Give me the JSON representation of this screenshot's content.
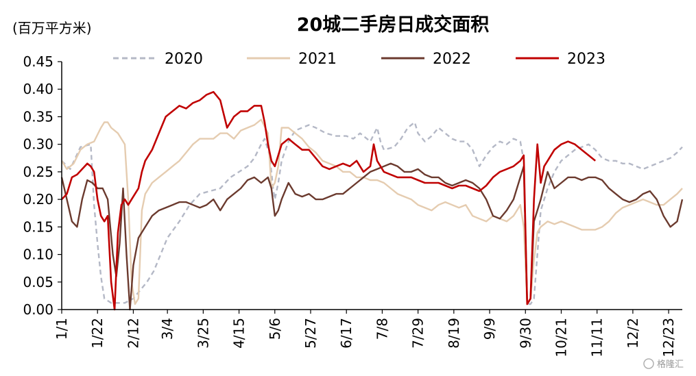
{
  "chart_data": {
    "type": "line",
    "title": "20城二手房日成交面积",
    "unit_label": "(百万平方米)",
    "xlabel": "",
    "ylabel": "",
    "ylim": [
      0,
      0.45
    ],
    "y_ticks": [
      "0.00",
      "0.05",
      "0.10",
      "0.15",
      "0.20",
      "0.25",
      "0.30",
      "0.35",
      "0.40",
      "0.45"
    ],
    "x_domain": [
      1,
      365
    ],
    "x_ticks": [
      {
        "day": 1,
        "label": "1/1"
      },
      {
        "day": 22,
        "label": "1/22"
      },
      {
        "day": 43,
        "label": "2/12"
      },
      {
        "day": 63,
        "label": "3/4"
      },
      {
        "day": 84,
        "label": "3/25"
      },
      {
        "day": 105,
        "label": "4/15"
      },
      {
        "day": 126,
        "label": "5/6"
      },
      {
        "day": 147,
        "label": "5/27"
      },
      {
        "day": 168,
        "label": "6/17"
      },
      {
        "day": 189,
        "label": "7/8"
      },
      {
        "day": 210,
        "label": "7/29"
      },
      {
        "day": 231,
        "label": "8/19"
      },
      {
        "day": 252,
        "label": "9/9"
      },
      {
        "day": 273,
        "label": "9/30"
      },
      {
        "day": 294,
        "label": "10/21"
      },
      {
        "day": 315,
        "label": "11/11"
      },
      {
        "day": 336,
        "label": "12/2"
      },
      {
        "day": 357,
        "label": "12/23"
      }
    ],
    "legend_position": "top",
    "grid": false,
    "series": [
      {
        "name": "2020",
        "color": "#b4b8c6",
        "dash": "dashed",
        "x": [
          1,
          6,
          12,
          18,
          20,
          22,
          24,
          26,
          30,
          38,
          43,
          47,
          51,
          55,
          59,
          63,
          70,
          76,
          82,
          88,
          94,
          100,
          105,
          110,
          114,
          118,
          120,
          123,
          125,
          126,
          128,
          130,
          134,
          138,
          142,
          146,
          150,
          156,
          162,
          168,
          172,
          176,
          182,
          186,
          188,
          190,
          196,
          200,
          204,
          208,
          210,
          214,
          218,
          222,
          226,
          230,
          234,
          238,
          242,
          246,
          250,
          254,
          258,
          262,
          266,
          270,
          272,
          273,
          274,
          276,
          278,
          282,
          286,
          290,
          294,
          298,
          302,
          306,
          310,
          314,
          318,
          322,
          326,
          330,
          334,
          338,
          342,
          346,
          350,
          354,
          358,
          362,
          365
        ],
        "y": [
          0.27,
          0.255,
          0.295,
          0.3,
          0.19,
          0.12,
          0.06,
          0.02,
          0.012,
          0.012,
          0.02,
          0.035,
          0.05,
          0.07,
          0.1,
          0.13,
          0.16,
          0.19,
          0.21,
          0.215,
          0.22,
          0.24,
          0.25,
          0.26,
          0.275,
          0.3,
          0.31,
          0.28,
          0.22,
          0.2,
          0.23,
          0.27,
          0.305,
          0.325,
          0.33,
          0.335,
          0.33,
          0.32,
          0.315,
          0.315,
          0.31,
          0.32,
          0.305,
          0.33,
          0.305,
          0.29,
          0.295,
          0.31,
          0.33,
          0.34,
          0.32,
          0.305,
          0.315,
          0.33,
          0.32,
          0.31,
          0.305,
          0.305,
          0.29,
          0.26,
          0.28,
          0.295,
          0.305,
          0.3,
          0.31,
          0.305,
          0.27,
          0.12,
          0.01,
          0.01,
          0.02,
          0.18,
          0.22,
          0.25,
          0.27,
          0.28,
          0.29,
          0.295,
          0.3,
          0.29,
          0.275,
          0.27,
          0.27,
          0.265,
          0.265,
          0.26,
          0.255,
          0.26,
          0.265,
          0.27,
          0.275,
          0.285,
          0.295
        ]
      },
      {
        "name": "2021",
        "color": "#e5ccb0",
        "dash": "solid",
        "x": [
          1,
          4,
          8,
          12,
          16,
          20,
          24,
          26,
          28,
          30,
          34,
          38,
          40,
          42,
          44,
          46,
          48,
          50,
          54,
          58,
          62,
          66,
          70,
          74,
          78,
          82,
          86,
          90,
          94,
          98,
          102,
          106,
          110,
          114,
          118,
          122,
          124,
          126,
          128,
          130,
          134,
          138,
          142,
          146,
          150,
          154,
          158,
          162,
          166,
          170,
          174,
          178,
          182,
          186,
          190,
          194,
          198,
          202,
          206,
          210,
          214,
          218,
          222,
          226,
          230,
          234,
          238,
          242,
          246,
          250,
          254,
          258,
          262,
          266,
          270,
          272,
          274,
          276,
          278,
          280,
          282,
          286,
          290,
          294,
          298,
          302,
          306,
          310,
          314,
          318,
          322,
          326,
          330,
          334,
          338,
          342,
          346,
          350,
          354,
          358,
          362,
          365
        ],
        "y": [
          0.27,
          0.255,
          0.265,
          0.29,
          0.3,
          0.305,
          0.33,
          0.34,
          0.34,
          0.33,
          0.32,
          0.3,
          0.2,
          0.05,
          0.01,
          0.02,
          0.18,
          0.21,
          0.23,
          0.24,
          0.25,
          0.26,
          0.27,
          0.285,
          0.3,
          0.31,
          0.31,
          0.31,
          0.32,
          0.32,
          0.31,
          0.325,
          0.33,
          0.335,
          0.345,
          0.32,
          0.22,
          0.23,
          0.26,
          0.33,
          0.33,
          0.32,
          0.31,
          0.295,
          0.285,
          0.27,
          0.265,
          0.26,
          0.25,
          0.25,
          0.24,
          0.24,
          0.235,
          0.235,
          0.23,
          0.22,
          0.21,
          0.205,
          0.2,
          0.19,
          0.185,
          0.18,
          0.19,
          0.195,
          0.19,
          0.185,
          0.19,
          0.17,
          0.165,
          0.16,
          0.17,
          0.165,
          0.16,
          0.17,
          0.19,
          0.15,
          0.01,
          0.02,
          0.09,
          0.14,
          0.15,
          0.16,
          0.155,
          0.16,
          0.155,
          0.15,
          0.145,
          0.145,
          0.145,
          0.15,
          0.16,
          0.175,
          0.185,
          0.19,
          0.195,
          0.2,
          0.195,
          0.19,
          0.19,
          0.2,
          0.21,
          0.22
        ]
      },
      {
        "name": "2022",
        "color": "#6b3a2e",
        "dash": "solid",
        "x": [
          1,
          4,
          7,
          10,
          13,
          16,
          19,
          22,
          25,
          28,
          31,
          33,
          35,
          37,
          39,
          41,
          43,
          46,
          50,
          54,
          58,
          62,
          66,
          70,
          74,
          78,
          82,
          86,
          90,
          94,
          98,
          102,
          106,
          110,
          114,
          118,
          122,
          124,
          126,
          128,
          130,
          134,
          138,
          142,
          146,
          150,
          154,
          158,
          162,
          166,
          170,
          174,
          178,
          182,
          186,
          190,
          194,
          198,
          202,
          206,
          210,
          214,
          218,
          222,
          226,
          230,
          234,
          238,
          242,
          246,
          250,
          254,
          258,
          262,
          266,
          270,
          272,
          274,
          276,
          278,
          280,
          282,
          286,
          290,
          294,
          298,
          302,
          306,
          310,
          314,
          318,
          322,
          326,
          330,
          334,
          338,
          342,
          346,
          350,
          354,
          358,
          362,
          365
        ],
        "y": [
          0.24,
          0.2,
          0.16,
          0.15,
          0.2,
          0.235,
          0.23,
          0.22,
          0.22,
          0.2,
          0.1,
          0.06,
          0.12,
          0.22,
          0.1,
          0.0,
          0.08,
          0.13,
          0.15,
          0.17,
          0.18,
          0.185,
          0.19,
          0.195,
          0.195,
          0.19,
          0.185,
          0.19,
          0.2,
          0.18,
          0.2,
          0.21,
          0.22,
          0.235,
          0.24,
          0.23,
          0.24,
          0.22,
          0.17,
          0.18,
          0.2,
          0.23,
          0.21,
          0.205,
          0.21,
          0.2,
          0.2,
          0.205,
          0.21,
          0.21,
          0.22,
          0.23,
          0.24,
          0.25,
          0.255,
          0.26,
          0.265,
          0.26,
          0.25,
          0.25,
          0.255,
          0.245,
          0.24,
          0.24,
          0.23,
          0.225,
          0.23,
          0.235,
          0.23,
          0.22,
          0.2,
          0.17,
          0.165,
          0.18,
          0.2,
          0.24,
          0.26,
          0.01,
          0.02,
          0.16,
          0.18,
          0.2,
          0.25,
          0.22,
          0.23,
          0.24,
          0.24,
          0.235,
          0.24,
          0.24,
          0.235,
          0.22,
          0.21,
          0.2,
          0.195,
          0.2,
          0.21,
          0.215,
          0.2,
          0.17,
          0.15,
          0.16,
          0.2
        ]
      },
      {
        "name": "2023",
        "color": "#c00000",
        "dash": "solid",
        "x": [
          1,
          4,
          7,
          10,
          13,
          16,
          18,
          20,
          22,
          24,
          26,
          28,
          30,
          32,
          34,
          36,
          38,
          40,
          42,
          44,
          46,
          48,
          50,
          54,
          58,
          62,
          66,
          70,
          74,
          78,
          82,
          86,
          90,
          94,
          98,
          102,
          106,
          110,
          114,
          118,
          120,
          122,
          124,
          126,
          128,
          130,
          134,
          138,
          142,
          146,
          150,
          154,
          158,
          162,
          166,
          170,
          174,
          178,
          182,
          184,
          186,
          190,
          194,
          198,
          202,
          206,
          210,
          214,
          218,
          222,
          226,
          230,
          234,
          238,
          242,
          246,
          250,
          254,
          258,
          262,
          266,
          270,
          272,
          274,
          276,
          278,
          280,
          282,
          284,
          286,
          290,
          294,
          298,
          302,
          306,
          310,
          314
        ],
        "y": [
          0.2,
          0.21,
          0.24,
          0.245,
          0.255,
          0.265,
          0.26,
          0.25,
          0.2,
          0.17,
          0.16,
          0.17,
          0.05,
          0.0,
          0.14,
          0.19,
          0.2,
          0.19,
          0.2,
          0.21,
          0.22,
          0.25,
          0.27,
          0.29,
          0.32,
          0.35,
          0.36,
          0.37,
          0.365,
          0.375,
          0.38,
          0.39,
          0.395,
          0.38,
          0.33,
          0.35,
          0.36,
          0.36,
          0.37,
          0.37,
          0.34,
          0.3,
          0.27,
          0.26,
          0.28,
          0.3,
          0.31,
          0.3,
          0.29,
          0.29,
          0.275,
          0.26,
          0.255,
          0.26,
          0.265,
          0.26,
          0.27,
          0.25,
          0.26,
          0.3,
          0.27,
          0.25,
          0.245,
          0.24,
          0.24,
          0.24,
          0.235,
          0.23,
          0.23,
          0.23,
          0.225,
          0.22,
          0.225,
          0.225,
          0.22,
          0.215,
          0.225,
          0.24,
          0.25,
          0.255,
          0.26,
          0.27,
          0.28,
          0.01,
          0.02,
          0.2,
          0.3,
          0.23,
          0.26,
          0.27,
          0.29,
          0.3,
          0.305,
          0.3,
          0.29,
          0.28,
          0.27
        ]
      }
    ]
  },
  "watermark": "格隆汇",
  "watermark_icon": "glh-logo-icon"
}
